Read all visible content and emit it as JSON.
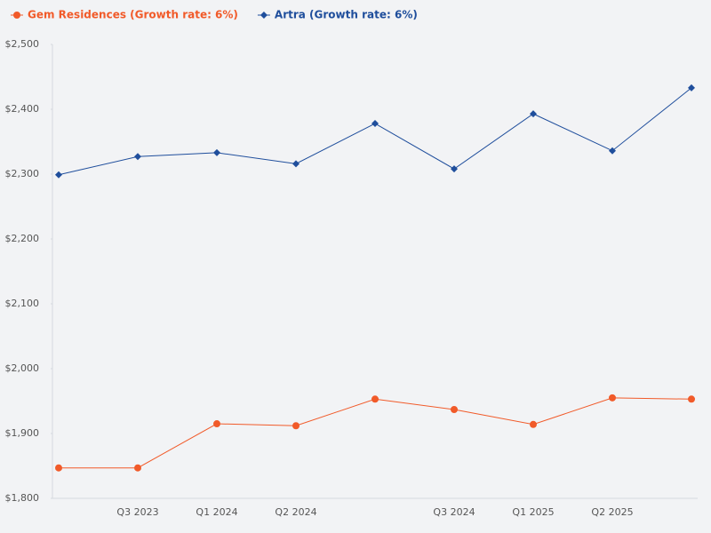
{
  "chart_data": {
    "type": "line",
    "categories": [
      null,
      "Q3 2023",
      "Q1 2024",
      "Q2 2024",
      null,
      "Q3 2024",
      "Q1 2025",
      "Q2 2025",
      null
    ],
    "series": [
      {
        "name": "Gem Residences (Growth rate: 6%)",
        "color": "#f15a29",
        "marker": "circle",
        "values": [
          1847,
          1847,
          1915,
          1912,
          1953,
          1937,
          1914,
          1955,
          1953
        ]
      },
      {
        "name": "Artra (Growth rate: 6%)",
        "color": "#1f4e9c",
        "marker": "diamond",
        "values": [
          2299,
          2327,
          2333,
          2316,
          2378,
          2308,
          2393,
          2336,
          2433
        ]
      }
    ],
    "ylim": [
      1800,
      2500
    ],
    "yticks": [
      {
        "value": 1800,
        "label": "$1,800"
      },
      {
        "value": 1900,
        "label": "$1,900"
      },
      {
        "value": 2000,
        "label": "$2,000"
      },
      {
        "value": 2100,
        "label": "$2,100"
      },
      {
        "value": 2200,
        "label": "$2,200"
      },
      {
        "value": 2300,
        "label": "$2,300"
      },
      {
        "value": 2400,
        "label": "$2,400"
      },
      {
        "value": 2500,
        "label": "$2,500"
      }
    ],
    "grid": false,
    "legend": "top-left"
  }
}
